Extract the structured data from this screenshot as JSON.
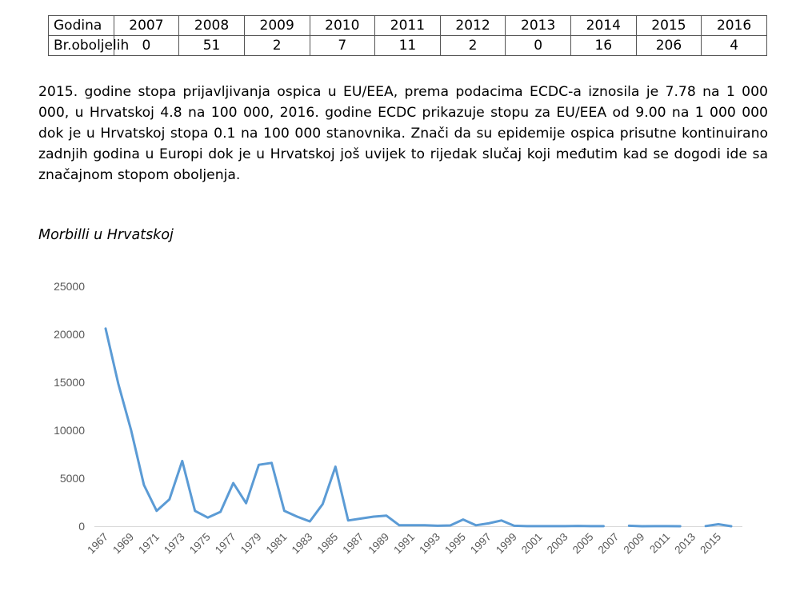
{
  "table": {
    "header_label": "Godina",
    "years": [
      "2007",
      "2008",
      "2009",
      "2010",
      "2011",
      "2012",
      "2013",
      "2014",
      "2015",
      "2016"
    ],
    "row_label": "Br.oboljelih",
    "counts": [
      "0",
      "51",
      "2",
      "7",
      "11",
      "2",
      "0",
      "16",
      "206",
      "4"
    ]
  },
  "paragraph": "2015. godine stopa prijavljivanja ospica u EU/EEA, prema podacima ECDC-a iznosila je 7.78 na 1 000 000, u Hrvatskoj 4.8 na 100 000, 2016. godine ECDC prikazuje stopu za EU/EEA od 9.00 na 1 000 000 dok je u Hrvatskoj stopa 0.1 na 100 000 stanovnika. Znači da su epidemije ospica prisutne kontinuirano zadnjih godina u Europi dok je u Hrvatskoj još uvijek to rijedak slučaj koji međutim kad se dogodi ide sa značajnom stopom oboljenja.",
  "chart_title": "Morbilli u Hrvatskoj",
  "chart_data": {
    "type": "line",
    "title": "",
    "xlabel": "",
    "ylabel": "",
    "ylim": [
      0,
      25000
    ],
    "yticks": [
      "0",
      "5000",
      "10000",
      "15000",
      "20000",
      "25000"
    ],
    "x": [
      1967,
      1968,
      1969,
      1970,
      1971,
      1972,
      1973,
      1974,
      1975,
      1976,
      1977,
      1978,
      1979,
      1980,
      1981,
      1982,
      1983,
      1984,
      1985,
      1986,
      1987,
      1988,
      1989,
      1990,
      1991,
      1992,
      1993,
      1994,
      1995,
      1996,
      1997,
      1998,
      1999,
      2000,
      2001,
      2002,
      2003,
      2004,
      2005,
      2006,
      2007,
      2008,
      2009,
      2010,
      2011,
      2012,
      2013,
      2014,
      2015,
      2016
    ],
    "xtick_labels": [
      "1967",
      "1969",
      "1971",
      "1973",
      "1975",
      "1977",
      "1979",
      "1981",
      "1983",
      "1985",
      "1987",
      "1989",
      "1991",
      "1993",
      "1995",
      "1997",
      "1999",
      "2001",
      "2003",
      "2005",
      "2007",
      "2009",
      "2011",
      "2013",
      "2015"
    ],
    "series": [
      {
        "name": "",
        "color": "#5b9bd5",
        "values": [
          20600,
          14800,
          10000,
          4300,
          1600,
          2800,
          6800,
          1600,
          900,
          1500,
          4500,
          2400,
          6400,
          6600,
          1600,
          1000,
          500,
          2300,
          6200,
          600,
          800,
          1000,
          1100,
          100,
          100,
          100,
          50,
          80,
          700,
          100,
          300,
          600,
          50,
          10,
          10,
          10,
          10,
          30,
          10,
          10,
          null,
          51,
          2,
          7,
          11,
          2,
          null,
          16,
          206,
          4
        ]
      }
    ],
    "grid": false,
    "legend": "none"
  }
}
